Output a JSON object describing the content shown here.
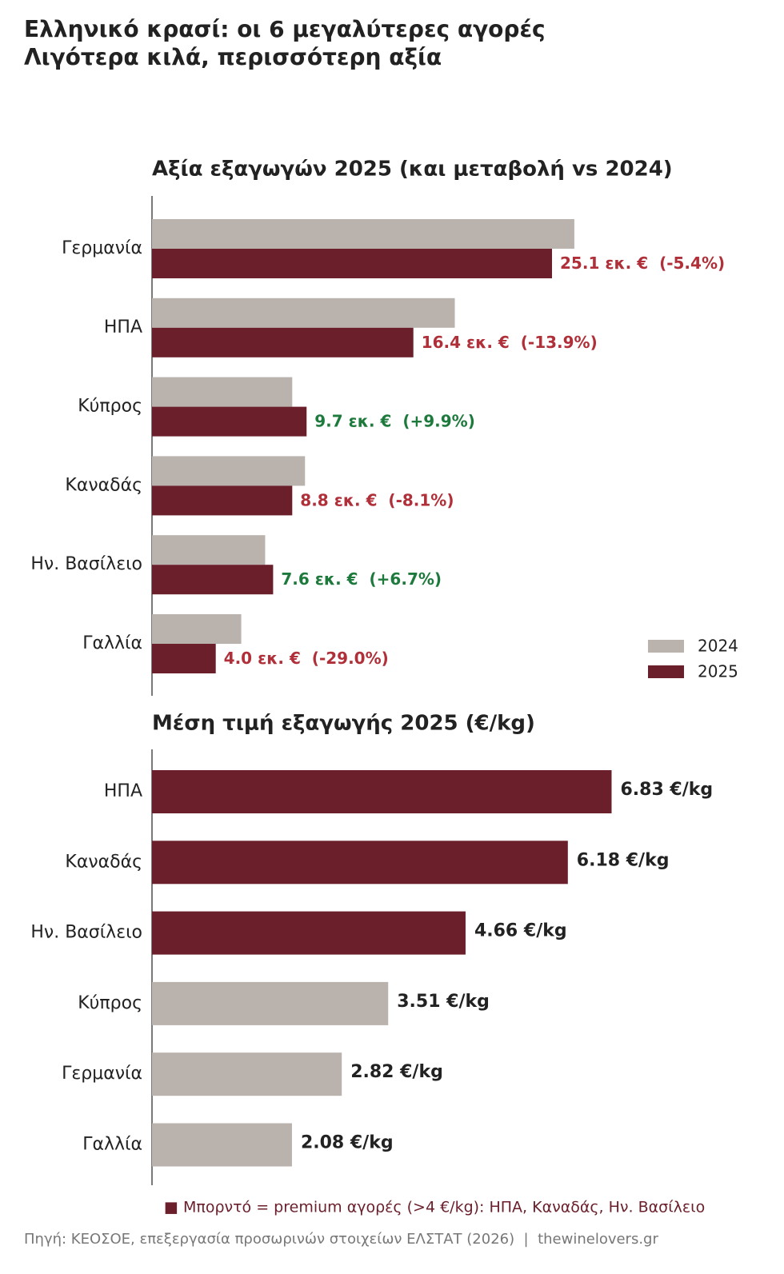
{
  "title": "Ελληνικό κρασί: οι 6 μεγαλύτερες αγορές",
  "subtitle": "Λιγότερα κιλά, περισσότερη αξία",
  "chart_data": [
    {
      "type": "bar",
      "orientation": "horizontal",
      "title": "Αξία εξαγωγών 2025 (και μεταβολή vs 2024)",
      "categories": [
        "Γερμανία",
        "ΗΠΑ",
        "Κύπρος",
        "Καναδάς",
        "Ην. Βασίλειο",
        "Γαλλία"
      ],
      "series": [
        {
          "name": "2024",
          "color": "#b9b2ad",
          "values": [
            26.5,
            19.0,
            8.8,
            9.6,
            7.1,
            5.6
          ]
        },
        {
          "name": "2025",
          "color": "#6a1f2b",
          "values": [
            25.1,
            16.4,
            9.7,
            8.8,
            7.6,
            4.0
          ],
          "value_labels": [
            "25.1 εκ. €  (-5.4%)",
            "16.4 εκ. €  (-13.9%)",
            "9.7 εκ. €  (+9.9%)",
            "8.8 εκ. €  (-8.1%)",
            "7.6 εκ. €  (+6.7%)",
            "4.0 εκ. €  (-29.0%)"
          ],
          "value_label_colors": [
            "#b0303a",
            "#b0303a",
            "#1e7a3c",
            "#b0303a",
            "#1e7a3c",
            "#b0303a"
          ]
        }
      ],
      "xlim": [
        0,
        38
      ],
      "legend": "lower right"
    },
    {
      "type": "bar",
      "orientation": "horizontal",
      "title": "Μέση τιμή εξαγωγής 2025 (€/kg)",
      "categories": [
        "ΗΠΑ",
        "Καναδάς",
        "Ην. Βασίλειο",
        "Κύπρος",
        "Γερμανία",
        "Γαλλία"
      ],
      "values": [
        6.83,
        6.18,
        4.66,
        3.51,
        2.82,
        2.08
      ],
      "value_labels": [
        "6.83 €/kg",
        "6.18 €/kg",
        "4.66 €/kg",
        "3.51 €/kg",
        "2.82 €/kg",
        "2.08 €/kg"
      ],
      "colors": [
        "#6a1f2b",
        "#6a1f2b",
        "#6a1f2b",
        "#b9b2ad",
        "#b9b2ad",
        "#b9b2ad"
      ],
      "label_color": "#222222",
      "xlim": [
        0,
        9
      ]
    }
  ],
  "note": "■ Μπορντό = premium αγορές (>4 €/kg): ΗΠΑ, Καναδάς, Ην. Βασίλειο",
  "source": "Πηγή: ΚΕΟΣΟΕ, επεξεργασία προσωρινών στοιχείων ΕΛΣΤΑΤ (2026)  |  thewinelovers.gr"
}
